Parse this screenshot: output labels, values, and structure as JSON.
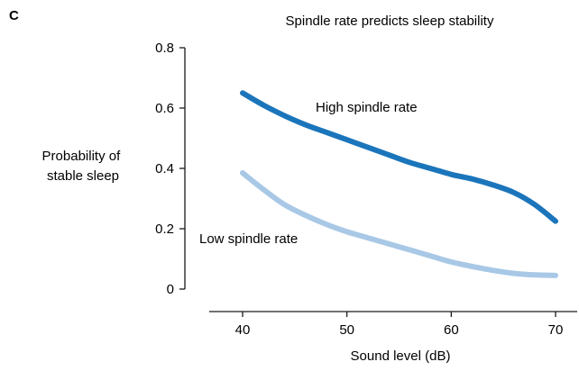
{
  "panel_letter": "C",
  "chart_data": {
    "type": "line",
    "title": "Spindle rate predicts sleep stability",
    "xlabel": "Sound level (dB)",
    "ylabel": [
      "Probability of",
      "stable sleep"
    ],
    "xlim": [
      35,
      72
    ],
    "ylim": [
      0,
      0.8
    ],
    "xticks": [
      40,
      50,
      60,
      70
    ],
    "xtick_labels": [
      "40",
      "50",
      "60",
      "70"
    ],
    "yticks": [
      0,
      0.2,
      0.4,
      0.6,
      0.8
    ],
    "ytick_labels": [
      "0",
      "0.2",
      "0.4",
      "0.6",
      "0.8"
    ],
    "grid": false,
    "legend": "none (series labeled directly on the lines)",
    "series": [
      {
        "name": "High spindle rate",
        "color": "#1b75bb",
        "x": [
          40,
          42,
          44,
          46,
          48,
          50,
          52,
          54,
          56,
          58,
          60,
          62,
          64,
          66,
          68,
          70
        ],
        "y": [
          0.65,
          0.61,
          0.575,
          0.545,
          0.52,
          0.495,
          0.47,
          0.445,
          0.42,
          0.4,
          0.38,
          0.365,
          0.345,
          0.32,
          0.28,
          0.225
        ]
      },
      {
        "name": "Low spindle rate",
        "color": "#a8c8e6",
        "x": [
          40,
          42,
          44,
          46,
          48,
          50,
          52,
          54,
          56,
          58,
          60,
          62,
          64,
          66,
          68,
          70
        ],
        "y": [
          0.385,
          0.33,
          0.28,
          0.245,
          0.215,
          0.19,
          0.17,
          0.15,
          0.13,
          0.11,
          0.09,
          0.075,
          0.062,
          0.052,
          0.047,
          0.045
        ]
      }
    ]
  }
}
